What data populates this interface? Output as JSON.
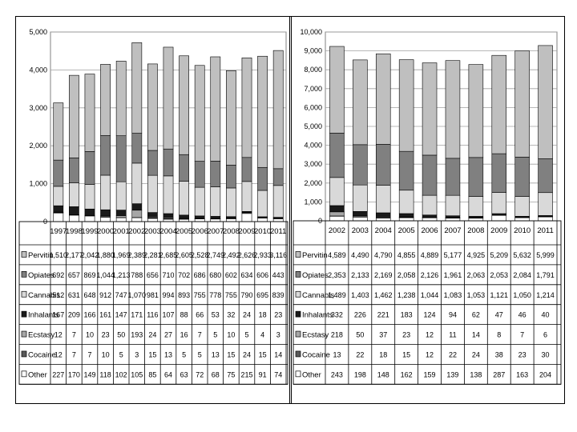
{
  "colors": {
    "Pervitin": "#bfbfbf",
    "Opiates": "#808080",
    "Cannabis": "#d9d9d9",
    "Inhalants": "#1a1a1a",
    "Ecstasy": "#a6a6a6",
    "Cocaine": "#595959",
    "Other": "#ffffff"
  },
  "chart_data": [
    {
      "type": "table",
      "chart_kind": "stacked-bar",
      "ylim": [
        0,
        5000
      ],
      "yticks": [
        "0",
        "1,000",
        "2,000",
        "3,000",
        "4,000",
        "5,000"
      ],
      "grid": true,
      "legend": "table-left",
      "categories": [
        "1997",
        "1998",
        "1999",
        "2000",
        "2001",
        "2002",
        "2003",
        "2004",
        "2005",
        "2006",
        "2007",
        "2008",
        "2009",
        "2010",
        "2011"
      ],
      "series": [
        {
          "name": "Pervitin",
          "labels": [
            "1,510",
            "2,177",
            "2,042",
            "1,880",
            "1,969",
            "2,389",
            "2,281",
            "2,685",
            "2,605",
            "2,528",
            "2,749",
            "2,492",
            "2,626",
            "2,933",
            "3,116"
          ],
          "values": [
            1510,
            2177,
            2042,
            1880,
            1969,
            2389,
            2281,
            2685,
            2605,
            2528,
            2749,
            2492,
            2626,
            2933,
            3116
          ]
        },
        {
          "name": "Opiates",
          "labels": [
            "692",
            "657",
            "869",
            "1,044",
            "1,213",
            "788",
            "656",
            "710",
            "702",
            "686",
            "680",
            "602",
            "634",
            "606",
            "443"
          ],
          "values": [
            692,
            657,
            869,
            1044,
            1213,
            788,
            656,
            710,
            702,
            686,
            680,
            602,
            634,
            606,
            443
          ]
        },
        {
          "name": "Cannabis",
          "labels": [
            "512",
            "631",
            "648",
            "912",
            "747",
            "1,070",
            "981",
            "994",
            "893",
            "755",
            "778",
            "755",
            "790",
            "695",
            "839"
          ],
          "values": [
            512,
            631,
            648,
            912,
            747,
            1070,
            981,
            994,
            893,
            755,
            778,
            755,
            790,
            695,
            839
          ]
        },
        {
          "name": "Inhalants",
          "labels": [
            "167",
            "209",
            "166",
            "161",
            "147",
            "171",
            "116",
            "107",
            "88",
            "66",
            "53",
            "32",
            "24",
            "18",
            "23"
          ],
          "values": [
            167,
            209,
            166,
            161,
            147,
            171,
            116,
            107,
            88,
            66,
            53,
            32,
            24,
            18,
            23
          ]
        },
        {
          "name": "Ecstasy",
          "labels": [
            "12",
            "7",
            "10",
            "23",
            "50",
            "193",
            "24",
            "27",
            "16",
            "7",
            "5",
            "10",
            "5",
            "4",
            "3"
          ],
          "values": [
            12,
            7,
            10,
            23,
            50,
            193,
            24,
            27,
            16,
            7,
            5,
            10,
            5,
            4,
            3
          ]
        },
        {
          "name": "Cocaine",
          "labels": [
            "12",
            "7",
            "7",
            "10",
            "5",
            "3",
            "15",
            "13",
            "5",
            "5",
            "13",
            "15",
            "24",
            "15",
            "14"
          ],
          "values": [
            12,
            7,
            7,
            10,
            5,
            3,
            15,
            13,
            5,
            5,
            13,
            15,
            24,
            15,
            14
          ]
        },
        {
          "name": "Other",
          "labels": [
            "227",
            "170",
            "149",
            "118",
            "102",
            "105",
            "85",
            "64",
            "63",
            "72",
            "68",
            "75",
            "215",
            "91",
            "74"
          ],
          "values": [
            227,
            170,
            149,
            118,
            102,
            105,
            85,
            64,
            63,
            72,
            68,
            75,
            215,
            91,
            74
          ]
        }
      ]
    },
    {
      "type": "table",
      "chart_kind": "stacked-bar",
      "ylim": [
        0,
        10000
      ],
      "yticks": [
        "0",
        "1,000",
        "2,000",
        "3,000",
        "4,000",
        "5,000",
        "6,000",
        "7,000",
        "8,000",
        "9,000",
        "10,000"
      ],
      "grid": true,
      "legend": "table-left",
      "categories": [
        "2002",
        "2003",
        "2004",
        "2005",
        "2006",
        "2007",
        "2008",
        "2009",
        "2010",
        "2011"
      ],
      "series": [
        {
          "name": "Pervitin",
          "labels": [
            "4,589",
            "4,490",
            "4,790",
            "4,855",
            "4,889",
            "5,177",
            "4,925",
            "5,209",
            "5,632",
            "5,999"
          ],
          "values": [
            4589,
            4490,
            4790,
            4855,
            4889,
            5177,
            4925,
            5209,
            5632,
            5999
          ]
        },
        {
          "name": "Opiates",
          "labels": [
            "2,353",
            "2,133",
            "2,169",
            "2,058",
            "2,126",
            "1,961",
            "2,063",
            "2,053",
            "2,084",
            "1,791"
          ],
          "values": [
            2353,
            2133,
            2169,
            2058,
            2126,
            1961,
            2063,
            2053,
            2084,
            1791
          ]
        },
        {
          "name": "Cannabis",
          "labels": [
            "1,489",
            "1,403",
            "1,462",
            "1,238",
            "1,044",
            "1,083",
            "1,053",
            "1,121",
            "1,050",
            "1,214"
          ],
          "values": [
            1489,
            1403,
            1462,
            1238,
            1044,
            1083,
            1053,
            1121,
            1050,
            1214
          ]
        },
        {
          "name": "Inhalants",
          "labels": [
            "332",
            "226",
            "221",
            "183",
            "124",
            "94",
            "62",
            "47",
            "46",
            "40"
          ],
          "values": [
            332,
            226,
            221,
            183,
            124,
            94,
            62,
            47,
            46,
            40
          ]
        },
        {
          "name": "Ecstasy",
          "labels": [
            "218",
            "50",
            "37",
            "23",
            "12",
            "11",
            "14",
            "8",
            "7",
            "6"
          ],
          "values": [
            218,
            50,
            37,
            23,
            12,
            11,
            14,
            8,
            7,
            6
          ]
        },
        {
          "name": "Cocaine",
          "labels": [
            "13",
            "22",
            "18",
            "15",
            "12",
            "22",
            "24",
            "38",
            "23",
            "30"
          ],
          "values": [
            13,
            22,
            18,
            15,
            12,
            22,
            24,
            38,
            23,
            30
          ]
        },
        {
          "name": "Other",
          "labels": [
            "243",
            "198",
            "148",
            "162",
            "159",
            "139",
            "138",
            "287",
            "163",
            "204"
          ],
          "values": [
            243,
            198,
            148,
            162,
            159,
            139,
            138,
            287,
            163,
            204
          ]
        }
      ]
    }
  ]
}
